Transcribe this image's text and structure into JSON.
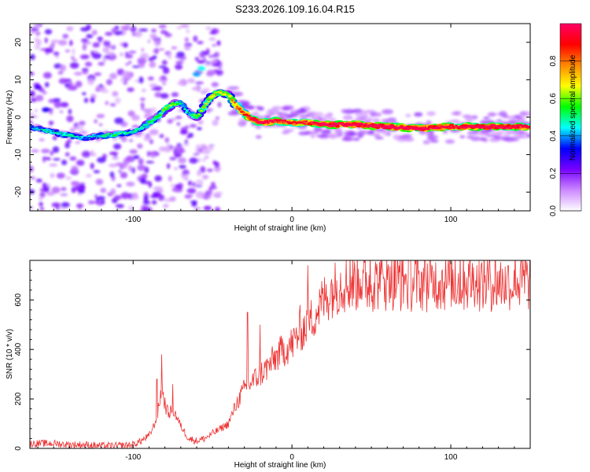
{
  "title": "S233.2026.109.16.04.R15",
  "chart_data": [
    {
      "type": "heatmap",
      "name": "spectrogram",
      "xlabel": "Height of straight line (km)",
      "ylabel": "Frequency (Hz)",
      "xlim": [
        -165,
        150
      ],
      "ylim": [
        -25,
        25
      ],
      "xticks": [
        -100,
        0,
        100
      ],
      "yticks": [
        -20,
        -10,
        0,
        10,
        20
      ],
      "colorbar": {
        "label": "Normalized spectral amplitude",
        "range": [
          0,
          1
        ],
        "ticks": [
          "0.0",
          "0.2",
          "0.4",
          "0.6",
          "0.8"
        ],
        "tick_values": [
          0,
          0.2,
          0.4,
          0.6,
          0.8
        ],
        "colors": [
          "#ffffff",
          "#cc88ff",
          "#7700ff",
          "#0000ff",
          "#00ffff",
          "#00ff00",
          "#ffff00",
          "#ff8800",
          "#ff0000",
          "#ff0066"
        ]
      },
      "ridge": {
        "x": [
          -165,
          -150,
          -140,
          -130,
          -120,
          -110,
          -100,
          -95,
          -90,
          -85,
          -80,
          -75,
          -70,
          -65,
          -60,
          -55,
          -50,
          -45,
          -40,
          -35,
          -30,
          -25,
          -20,
          -10,
          0,
          10,
          20,
          40,
          60,
          80,
          100,
          120,
          150
        ],
        "freq": [
          -2.5,
          -4,
          -5,
          -5.5,
          -5,
          -4.5,
          -4,
          -3,
          -1.5,
          0,
          2,
          3.5,
          4,
          1,
          0,
          3,
          6,
          6.5,
          6,
          3,
          1,
          -0.5,
          -1.5,
          -1,
          -1.5,
          -1.5,
          -2,
          -2,
          -2.5,
          -3,
          -2.5,
          -2.5,
          -2.5
        ],
        "amplitude": [
          0.35,
          0.4,
          0.4,
          0.35,
          0.4,
          0.45,
          0.4,
          0.4,
          0.45,
          0.45,
          0.5,
          0.5,
          0.4,
          0.4,
          0.5,
          0.55,
          0.6,
          0.55,
          0.55,
          0.75,
          0.8,
          0.85,
          0.9,
          0.85,
          0.8,
          0.8,
          0.9,
          0.9,
          0.9,
          0.9,
          0.85,
          0.9,
          0.85
        ]
      }
    },
    {
      "type": "line",
      "name": "snr",
      "xlabel": "Height of straight line (km)",
      "ylabel": "SNR (10 * v/v)",
      "xlim": [
        -165,
        150
      ],
      "ylim": [
        0,
        760
      ],
      "xticks": [
        -100,
        0,
        100
      ],
      "yticks": [
        0,
        200,
        400,
        600
      ],
      "color": "#ee3333",
      "x": [
        -165,
        -150,
        -140,
        -130,
        -120,
        -110,
        -100,
        -95,
        -90,
        -85,
        -82,
        -80,
        -78,
        -75,
        -72,
        -70,
        -65,
        -60,
        -55,
        -50,
        -45,
        -40,
        -35,
        -30,
        -25,
        -20,
        -15,
        -10,
        -5,
        0,
        5,
        10,
        15,
        20,
        25,
        30,
        40,
        50,
        60,
        80,
        100,
        120,
        150
      ],
      "y": [
        20,
        20,
        15,
        15,
        10,
        10,
        15,
        30,
        50,
        120,
        250,
        180,
        140,
        160,
        120,
        90,
        40,
        30,
        40,
        60,
        80,
        100,
        180,
        240,
        270,
        300,
        330,
        370,
        400,
        420,
        470,
        500,
        550,
        600,
        640,
        660,
        670,
        670,
        670,
        670,
        670,
        670,
        670
      ],
      "spikes": [
        {
          "x": -82,
          "y": 380
        },
        {
          "x": -85,
          "y": 280
        },
        {
          "x": -75,
          "y": 260
        },
        {
          "x": -28,
          "y": 550
        },
        {
          "x": -20,
          "y": 500
        },
        {
          "x": 10,
          "y": 740
        },
        {
          "x": 5,
          "y": 580
        }
      ]
    }
  ]
}
